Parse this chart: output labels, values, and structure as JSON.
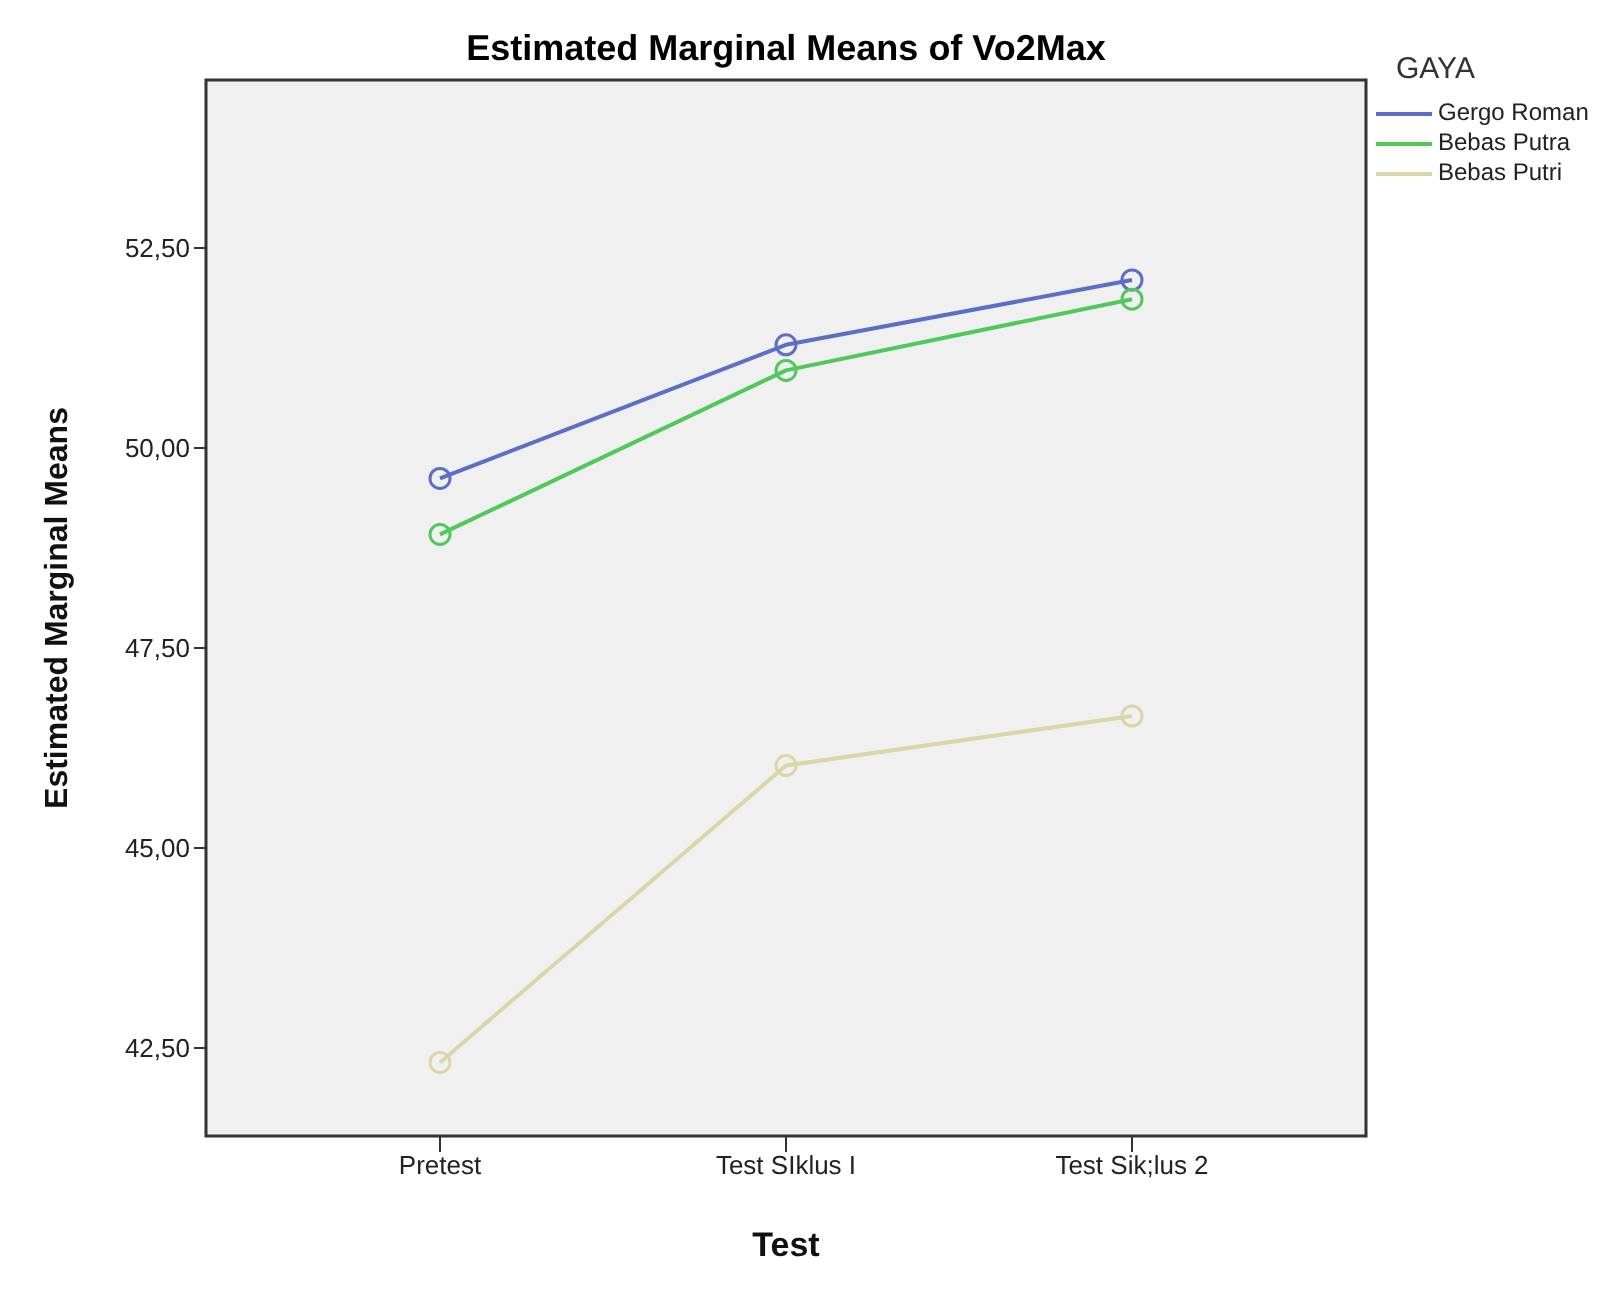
{
  "chart_data": {
    "type": "line",
    "title": "Estimated Marginal Means of Vo2Max",
    "xlabel": "Test",
    "ylabel": "Estimated Marginal Means",
    "legend_title": "GAYA",
    "categories": [
      "Pretest",
      "Test SIklus I",
      "Test Sik;lus 2"
    ],
    "series": [
      {
        "name": "Gergo Roman",
        "color": "#5b6fc7",
        "values": [
          49.62,
          51.29,
          52.1
        ]
      },
      {
        "name": "Bebas Putra",
        "color": "#4fc95a",
        "values": [
          48.92,
          50.97,
          51.86
        ]
      },
      {
        "name": "Bebas Putri",
        "color": "#d9d7a8",
        "values": [
          42.32,
          46.03,
          46.65
        ]
      }
    ],
    "ylim": [
      41.4,
      54.6
    ],
    "yticks": [
      {
        "value": 42.5,
        "label": "42,50"
      },
      {
        "value": 45,
        "label": "45,00"
      },
      {
        "value": 47.5,
        "label": "47,50"
      },
      {
        "value": 50,
        "label": "50,00"
      },
      {
        "value": 52.5,
        "label": "52,50"
      }
    ],
    "legend": "top right",
    "marker": "circle",
    "line_style": "solid"
  }
}
